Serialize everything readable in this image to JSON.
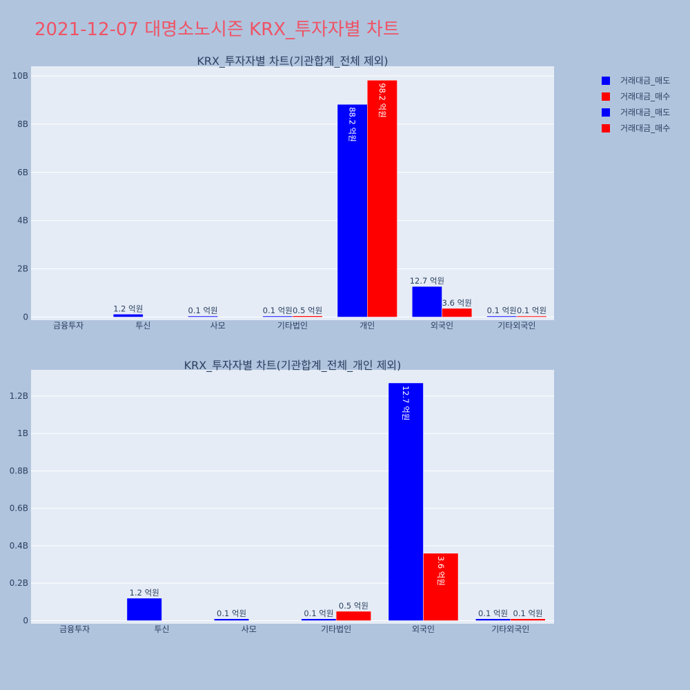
{
  "page_title": "2021-12-07 대명소노시즌 KRX_투자자별 차트",
  "legend": [
    {
      "label": "거래대금_매도",
      "color": "#0000ff"
    },
    {
      "label": "거래대금_매수",
      "color": "#ff0000"
    },
    {
      "label": "거래대금_매도",
      "color": "#0000ff"
    },
    {
      "label": "거래대금_매수",
      "color": "#ff0000"
    }
  ],
  "chart_data": [
    {
      "type": "bar",
      "title": "KRX_투자자별 차트(기관합계_전체 제외)",
      "categories": [
        "금융투자",
        "투신",
        "사모",
        "기타법인",
        "개인",
        "외국인",
        "기타외국인"
      ],
      "ylim": [
        0,
        10.4
      ],
      "yticks": [
        0,
        2,
        4,
        6,
        8,
        10
      ],
      "yticklabels": [
        "0",
        "2B",
        "4B",
        "6B",
        "8B",
        "10B"
      ],
      "grid": true,
      "series": [
        {
          "name": "거래대금_매도",
          "color": "#0000ff",
          "values": [
            0,
            0.12,
            0.01,
            0.01,
            8.82,
            1.27,
            0.01
          ],
          "labels": [
            "",
            "1.2 억원",
            "0.1 억원",
            "0.1 억원",
            "88.2 억원",
            "12.7 억원",
            "0.1 억원"
          ]
        },
        {
          "name": "거래대금_매수",
          "color": "#ff0000",
          "values": [
            0,
            0,
            0,
            0.05,
            9.82,
            0.36,
            0.01
          ],
          "labels": [
            "",
            "",
            "",
            "0.5 억원",
            "98.2 억원",
            "3.6 억원",
            "0.1 억원"
          ]
        }
      ]
    },
    {
      "type": "bar",
      "title": "KRX_투자자별 차트(기관합계_전체_개인 제외)",
      "categories": [
        "금융투자",
        "투신",
        "사모",
        "기타법인",
        "외국인",
        "기타외국인"
      ],
      "ylim": [
        0,
        1.34
      ],
      "yticks": [
        0,
        0.2,
        0.4,
        0.6,
        0.8,
        1.0,
        1.2
      ],
      "yticklabels": [
        "0",
        "0.2B",
        "0.4B",
        "0.6B",
        "0.8B",
        "1B",
        "1.2B"
      ],
      "grid": true,
      "series": [
        {
          "name": "거래대금_매도",
          "color": "#0000ff",
          "values": [
            0,
            0.12,
            0.01,
            0.01,
            1.27,
            0.01
          ],
          "labels": [
            "",
            "1.2 억원",
            "0.1 억원",
            "0.1 억원",
            "12.7 억원",
            "0.1 억원"
          ]
        },
        {
          "name": "거래대금_매수",
          "color": "#ff0000",
          "values": [
            0,
            0,
            0,
            0.05,
            0.36,
            0.01
          ],
          "labels": [
            "",
            "",
            "",
            "0.5 억원",
            "3.6 억원",
            "0.1 억원"
          ]
        }
      ]
    }
  ]
}
